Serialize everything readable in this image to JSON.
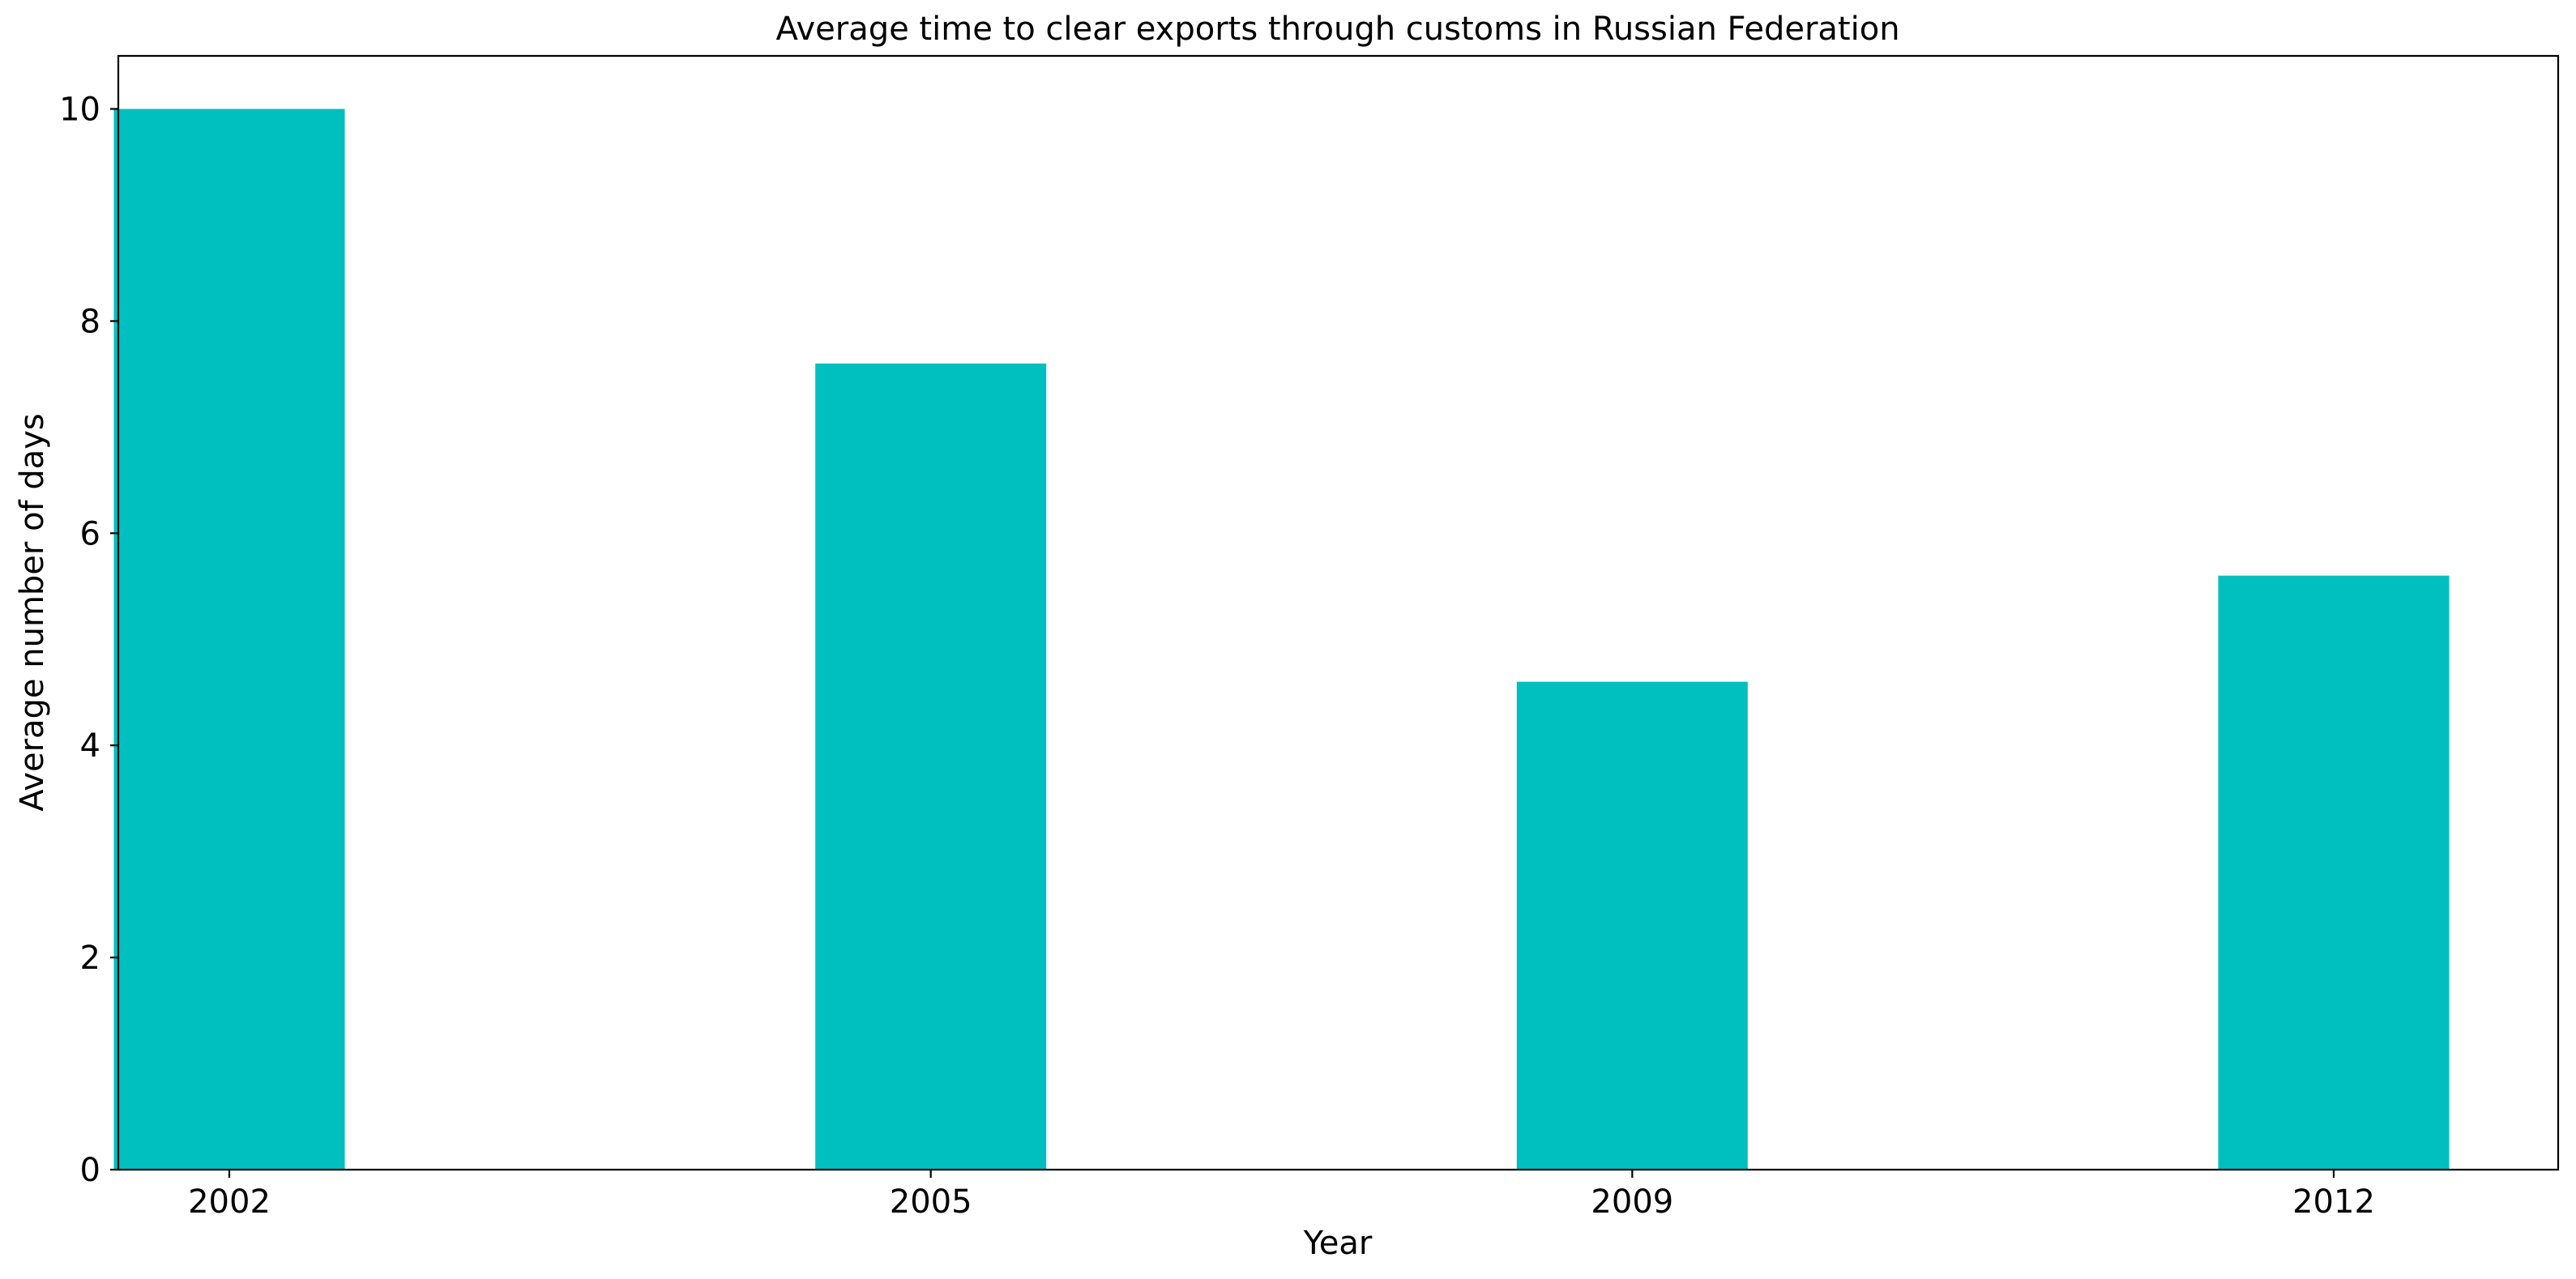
{
  "chart_data": {
    "type": "bar",
    "title": "Average time to clear exports through customs in Russian Federation",
    "xlabel": "Year",
    "ylabel": "Average number of days",
    "categories": [
      "2002",
      "2005",
      "2009",
      "2012"
    ],
    "values": [
      10.0,
      7.6,
      4.6,
      5.6
    ],
    "ylim": [
      0,
      10.5
    ],
    "yticks": [
      0,
      2,
      4,
      6,
      8,
      10
    ],
    "bar_color": "#00bfbf",
    "grid": false,
    "legend": false
  }
}
